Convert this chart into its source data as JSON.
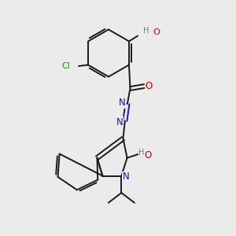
{
  "bg_color": "#ebebeb",
  "atom_colors": {
    "N": "#1414cc",
    "O": "#cc0000",
    "Cl": "#00aa00",
    "H_label": "#4a8c8c"
  },
  "bond_color": "#1a1a1a",
  "linewidth": 1.4,
  "figsize": [
    3.0,
    3.0
  ],
  "dpi": 100
}
